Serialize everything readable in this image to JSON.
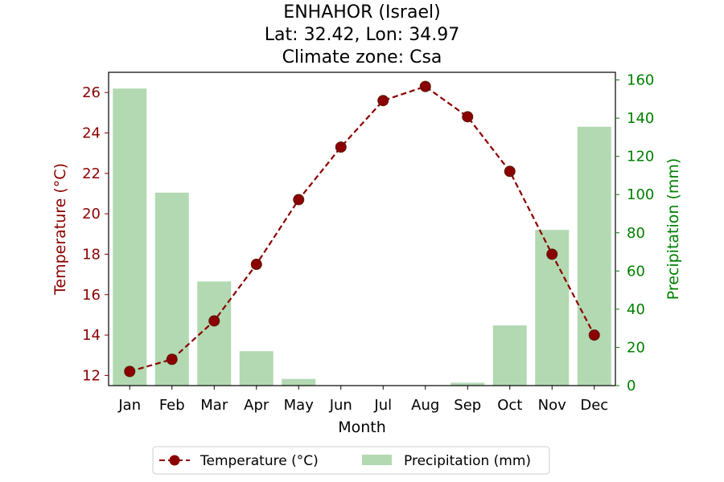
{
  "chart_data": {
    "type": "bar+line",
    "title_lines": [
      "ENHAHOR (Israel)",
      "Lat: 32.42, Lon: 34.97",
      "Climate zone: Csa"
    ],
    "xlabel": "Month",
    "categories": [
      "Jan",
      "Feb",
      "Mar",
      "Apr",
      "May",
      "Jun",
      "Jul",
      "Aug",
      "Sep",
      "Oct",
      "Nov",
      "Dec"
    ],
    "temperature": {
      "name": "Temperature (°C)",
      "axis_label": "Temperature (°C)",
      "values": [
        12.2,
        12.8,
        14.7,
        17.5,
        20.7,
        23.3,
        25.6,
        26.3,
        24.8,
        22.1,
        18.0,
        14.0
      ],
      "ylim": [
        11.5,
        27.0
      ],
      "ticks": [
        12,
        14,
        16,
        18,
        20,
        22,
        24,
        26
      ],
      "color": "#8b0000"
    },
    "precipitation": {
      "name": "Precipitation (mm)",
      "axis_label": "Precipitation (mm)",
      "values": [
        155.5,
        101.0,
        54.5,
        18.0,
        3.5,
        0,
        0,
        0,
        1.5,
        31.5,
        81.5,
        135.5
      ],
      "ylim": [
        0,
        164
      ],
      "ticks": [
        0,
        20,
        40,
        60,
        80,
        100,
        120,
        140,
        160
      ],
      "color": "#b2d9b2",
      "axis_color": "#008000"
    },
    "legend": {
      "placement": "bottom-center"
    },
    "grid": false
  }
}
